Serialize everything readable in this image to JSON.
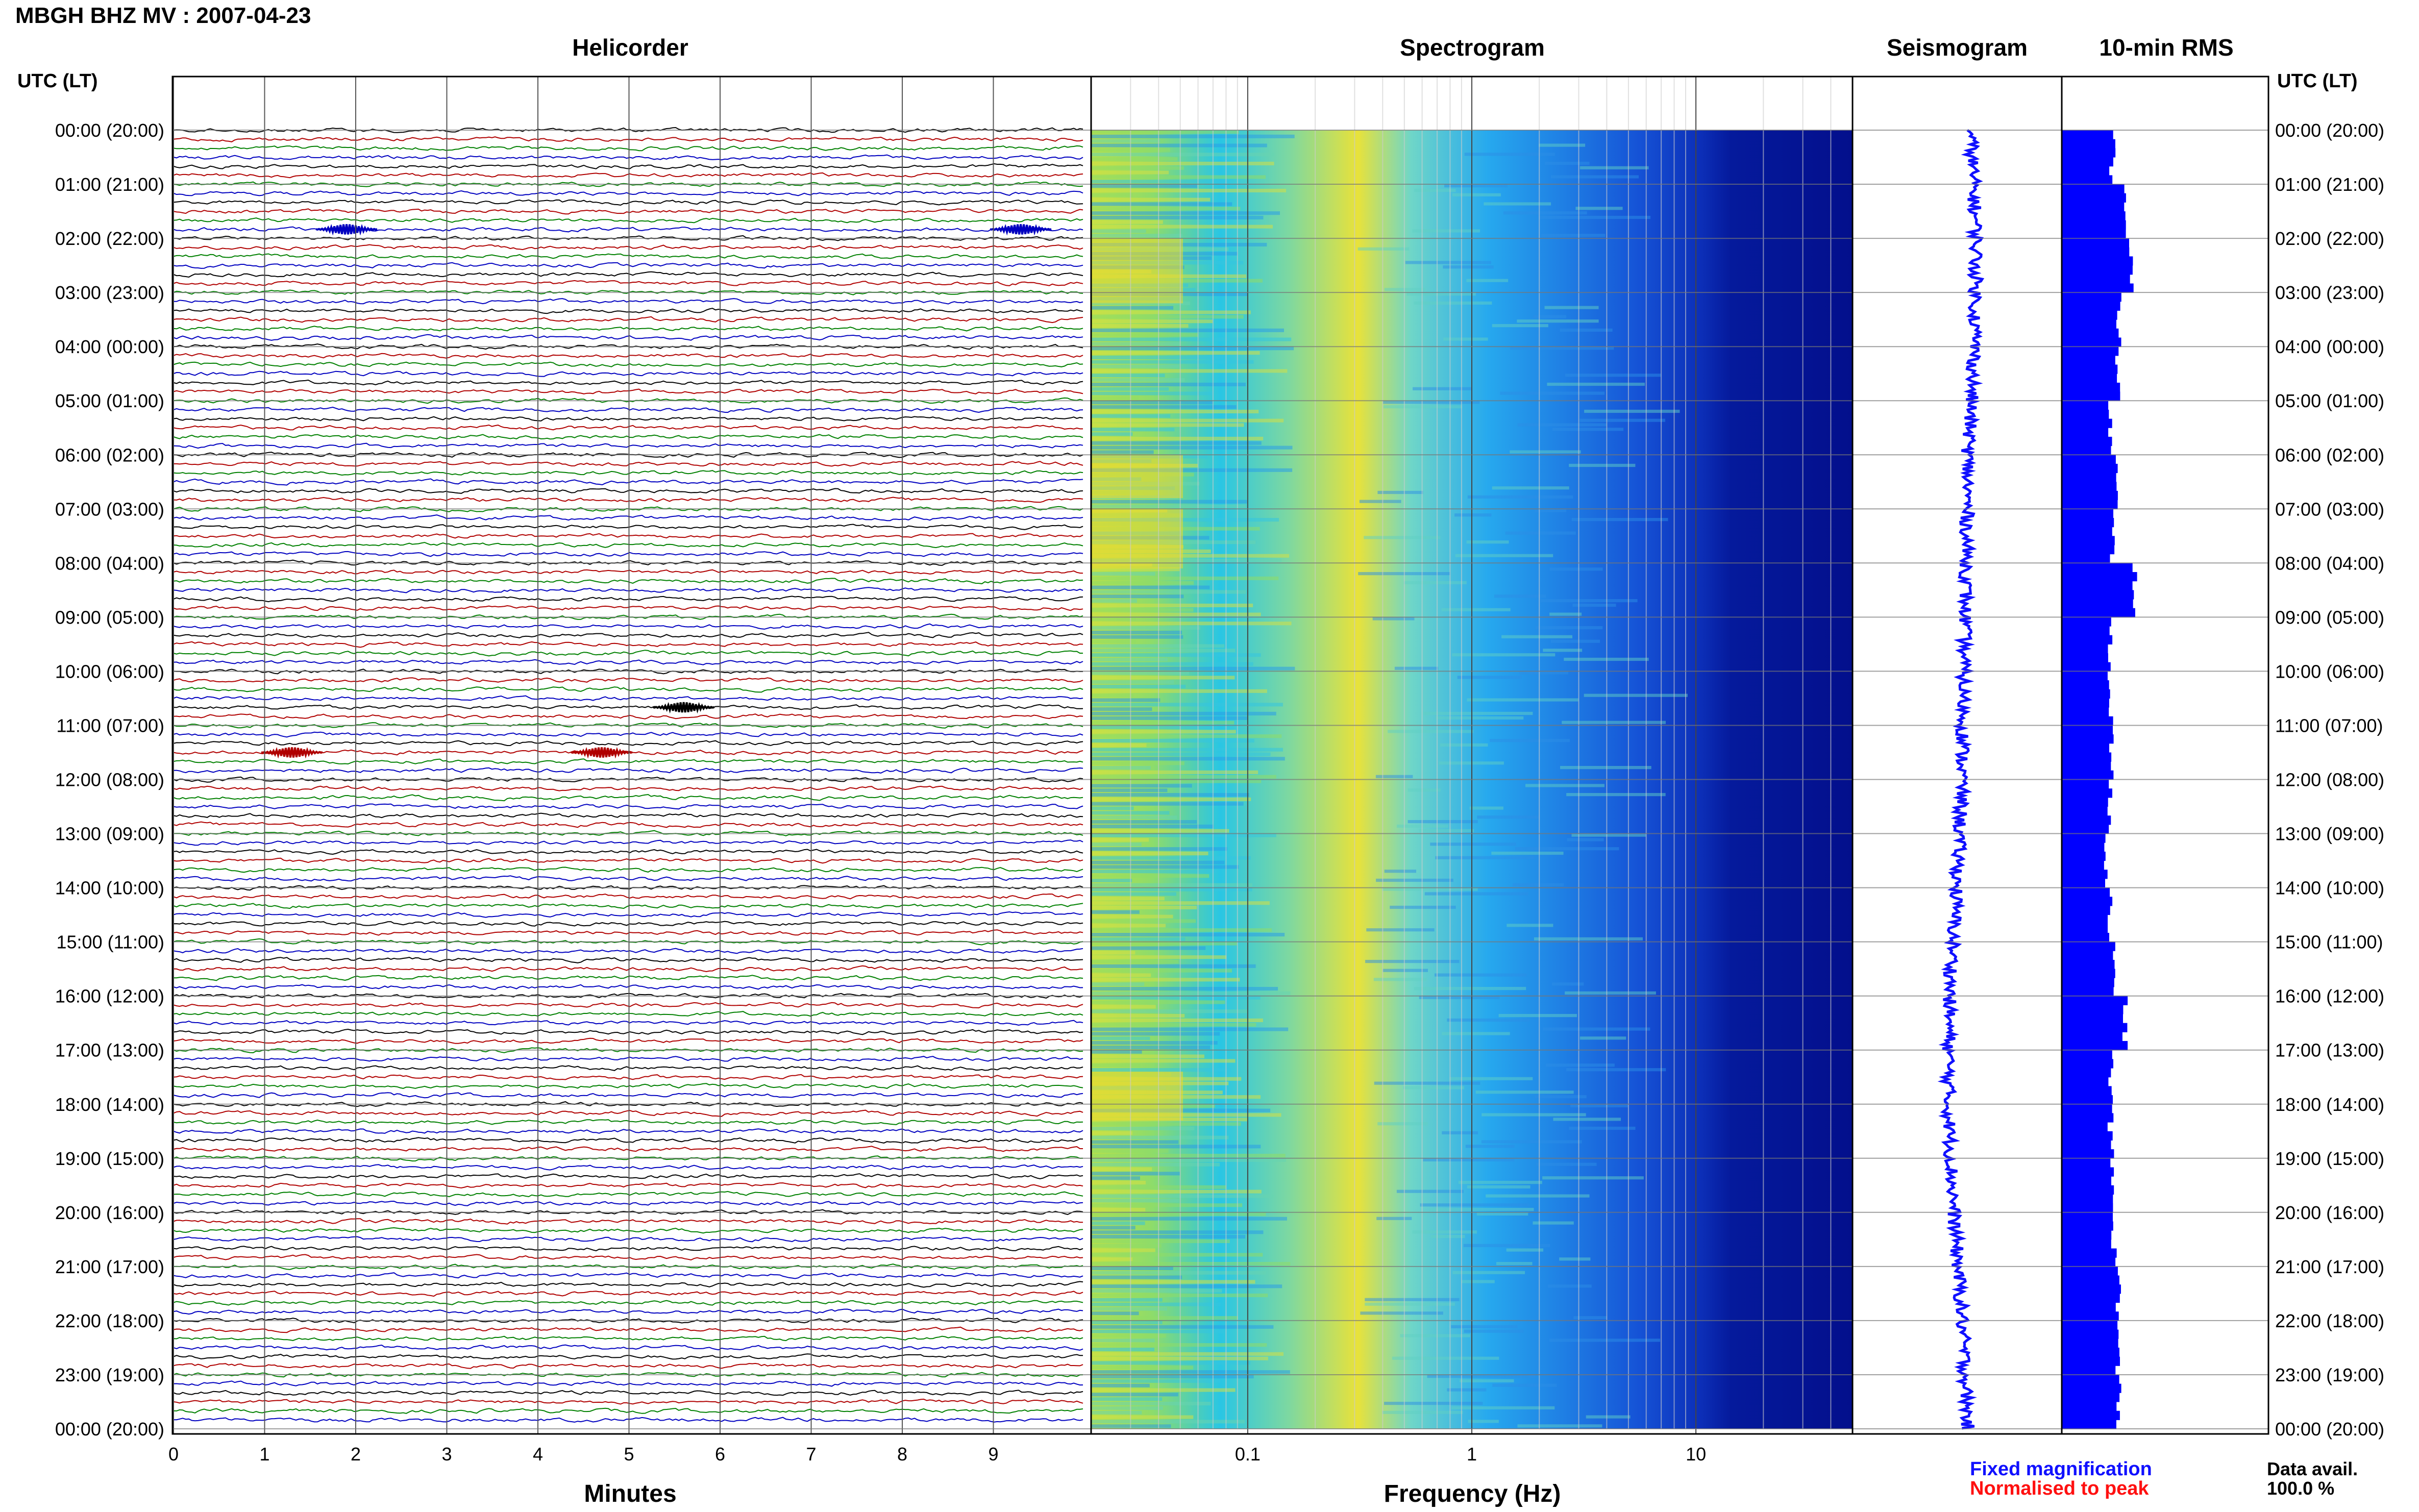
{
  "header": {
    "title": "MBGH BHZ MV : 2007-04-23"
  },
  "panels": {
    "helicorder": "Helicorder",
    "spectrogram": "Spectrogram",
    "seismogram": "Seismogram",
    "rms": "10-min RMS"
  },
  "axes": {
    "left_head": "UTC (LT)",
    "right_head": "UTC (LT)",
    "minutes_label": "Minutes",
    "frequency_label": "Frequency (Hz)"
  },
  "legend": {
    "fixed": "Fixed magnification",
    "normalised": "Normalised to peak"
  },
  "availability": {
    "label": "Data avail.",
    "value": "100.0 %"
  },
  "colors": {
    "trace_cycle": [
      "#000000",
      "#b00000",
      "#008000",
      "#0000c0"
    ],
    "seismogram": "#1010ff",
    "rms": "#0000ff",
    "grid": "#888888"
  },
  "chart_data": [
    {
      "type": "line",
      "title": "Helicorder",
      "xlabel": "Minutes",
      "x_ticks": [
        "0",
        "1",
        "2",
        "3",
        "4",
        "5",
        "6",
        "7",
        "8",
        "9"
      ],
      "xlim": [
        0,
        10
      ],
      "y_tick_labels": [
        "00:00 (20:00)",
        "01:00 (21:00)",
        "02:00 (22:00)",
        "03:00 (23:00)",
        "04:00 (00:00)",
        "05:00 (01:00)",
        "06:00 (02:00)",
        "07:00 (03:00)",
        "08:00 (04:00)",
        "09:00 (05:00)",
        "10:00 (06:00)",
        "11:00 (07:00)",
        "12:00 (08:00)",
        "13:00 (09:00)",
        "14:00 (10:00)",
        "15:00 (11:00)",
        "16:00 (12:00)",
        "17:00 (13:00)",
        "18:00 (14:00)",
        "19:00 (15:00)",
        "20:00 (16:00)",
        "21:00 (17:00)",
        "22:00 (18:00)",
        "23:00 (19:00)",
        "00:00 (20:00)"
      ],
      "traces_per_hour": 6,
      "events": [
        {
          "line": 11,
          "minute": 1.9
        },
        {
          "line": 69,
          "minute": 1.3
        },
        {
          "line": 69,
          "minute": 4.7
        },
        {
          "line": 64,
          "minute": 5.6
        },
        {
          "line": 11,
          "minute": 9.3
        }
      ]
    },
    {
      "type": "heatmap",
      "title": "Spectrogram",
      "xlabel": "Frequency (Hz)",
      "x_scale": "log",
      "xlim": [
        0.02,
        50
      ],
      "x_ticks": [
        "0.1",
        "1",
        "10"
      ]
    },
    {
      "type": "line",
      "title": "Seismogram",
      "x": [
        0,
        2,
        4,
        6,
        8,
        10,
        12,
        14,
        16,
        18,
        20,
        22,
        24
      ],
      "values": [
        0.3,
        0.5,
        0.45,
        0.2,
        0.15,
        0.05,
        0.0,
        -0.2,
        -0.45,
        -0.5,
        -0.3,
        0.0,
        0.2
      ]
    },
    {
      "type": "bar",
      "title": "10-min RMS",
      "x": [
        0,
        1,
        2,
        3,
        4,
        5,
        6,
        7,
        8,
        9,
        10,
        11,
        12,
        13,
        14,
        15,
        16,
        17,
        18,
        19,
        20,
        21,
        22,
        23
      ],
      "values": [
        0.62,
        0.8,
        0.85,
        0.7,
        0.68,
        0.6,
        0.66,
        0.62,
        0.9,
        0.58,
        0.6,
        0.62,
        0.58,
        0.55,
        0.6,
        0.62,
        0.78,
        0.6,
        0.6,
        0.62,
        0.64,
        0.7,
        0.68,
        0.7
      ],
      "xlabel": "",
      "ylabel": ""
    }
  ]
}
